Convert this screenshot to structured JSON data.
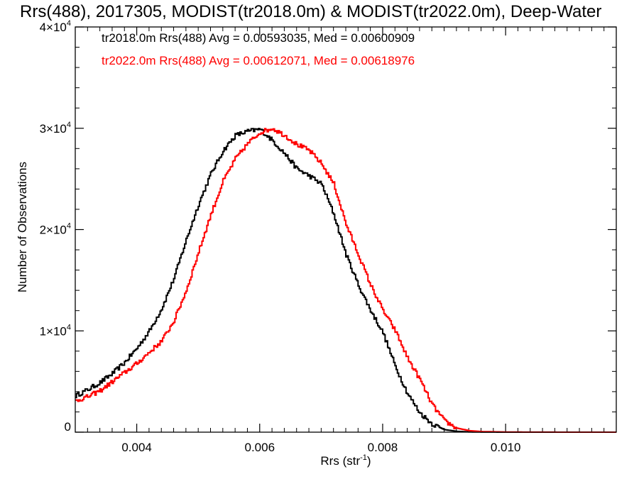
{
  "chart_data": {
    "type": "line",
    "title": "Rrs(488), 2017305, MODIST(tr2018.0m) & MODIST(tr2022.0m), Deep-Water",
    "xlabel": "Rrs (str",
    "xlabel_sup": "-1",
    "xlabel_close": ")",
    "ylabel": "Number of Observations",
    "xlim": [
      0.003,
      0.0118
    ],
    "ylim": [
      0,
      40000
    ],
    "x_ticks": [
      {
        "value": 0.004,
        "label": "0.004"
      },
      {
        "value": 0.006,
        "label": "0.006"
      },
      {
        "value": 0.008,
        "label": "0.008"
      },
      {
        "value": 0.01,
        "label": "0.010"
      }
    ],
    "y_ticks": [
      {
        "value": 0,
        "mantissa": "0",
        "exp": ""
      },
      {
        "value": 10000,
        "mantissa": "1×10",
        "exp": "4"
      },
      {
        "value": 20000,
        "mantissa": "2×10",
        "exp": "4"
      },
      {
        "value": 30000,
        "mantissa": "3×10",
        "exp": "4"
      },
      {
        "value": 40000,
        "mantissa": "4×10",
        "exp": "4"
      }
    ],
    "legend": [
      {
        "text": "tr2018.0m Rrs(488) Avg = 0.00593035, Med = 0.00600909",
        "color": "#000000"
      },
      {
        "text": "tr2022.0m Rrs(488) Avg = 0.00612071, Med = 0.00618976",
        "color": "#ff0000"
      }
    ],
    "series": [
      {
        "color": "#000000",
        "points": [
          [
            0.003,
            3600
          ],
          [
            0.0032,
            4200
          ],
          [
            0.0034,
            4900
          ],
          [
            0.0036,
            5800
          ],
          [
            0.0038,
            6900
          ],
          [
            0.004,
            8300
          ],
          [
            0.0042,
            10000
          ],
          [
            0.0044,
            12200
          ],
          [
            0.0046,
            15200
          ],
          [
            0.0048,
            19000
          ],
          [
            0.005,
            22500
          ],
          [
            0.0052,
            25500
          ],
          [
            0.0054,
            27800
          ],
          [
            0.0056,
            29300
          ],
          [
            0.0058,
            29700
          ],
          [
            0.006,
            29900
          ],
          [
            0.0062,
            28800
          ],
          [
            0.0064,
            27500
          ],
          [
            0.0066,
            26000
          ],
          [
            0.0068,
            25300
          ],
          [
            0.007,
            24500
          ],
          [
            0.0072,
            21500
          ],
          [
            0.0074,
            17500
          ],
          [
            0.0076,
            14500
          ],
          [
            0.0078,
            12000
          ],
          [
            0.008,
            9800
          ],
          [
            0.0082,
            6500
          ],
          [
            0.0084,
            3800
          ],
          [
            0.0086,
            1900
          ],
          [
            0.0088,
            800
          ],
          [
            0.009,
            250
          ],
          [
            0.0092,
            80
          ],
          [
            0.0094,
            30
          ],
          [
            0.0096,
            10
          ],
          [
            0.01,
            0
          ],
          [
            0.0118,
            0
          ]
        ]
      },
      {
        "color": "#ff0000",
        "points": [
          [
            0.003,
            3100
          ],
          [
            0.0032,
            3500
          ],
          [
            0.0034,
            4100
          ],
          [
            0.0036,
            5000
          ],
          [
            0.0038,
            5900
          ],
          [
            0.004,
            6800
          ],
          [
            0.0042,
            7900
          ],
          [
            0.0044,
            9000
          ],
          [
            0.0046,
            11000
          ],
          [
            0.0048,
            14000
          ],
          [
            0.005,
            17800
          ],
          [
            0.0052,
            21500
          ],
          [
            0.0054,
            24800
          ],
          [
            0.0056,
            27000
          ],
          [
            0.0058,
            28500
          ],
          [
            0.006,
            29600
          ],
          [
            0.0062,
            30000
          ],
          [
            0.0064,
            29300
          ],
          [
            0.0066,
            28400
          ],
          [
            0.0068,
            27800
          ],
          [
            0.007,
            26500
          ],
          [
            0.0072,
            24500
          ],
          [
            0.0074,
            20500
          ],
          [
            0.0076,
            17500
          ],
          [
            0.0078,
            14500
          ],
          [
            0.008,
            12000
          ],
          [
            0.0082,
            10000
          ],
          [
            0.0084,
            7300
          ],
          [
            0.0086,
            5200
          ],
          [
            0.0088,
            2700
          ],
          [
            0.009,
            1100
          ],
          [
            0.0092,
            400
          ],
          [
            0.0094,
            150
          ],
          [
            0.0096,
            60
          ],
          [
            0.01,
            20
          ],
          [
            0.0104,
            5
          ],
          [
            0.0118,
            0
          ]
        ]
      }
    ]
  }
}
